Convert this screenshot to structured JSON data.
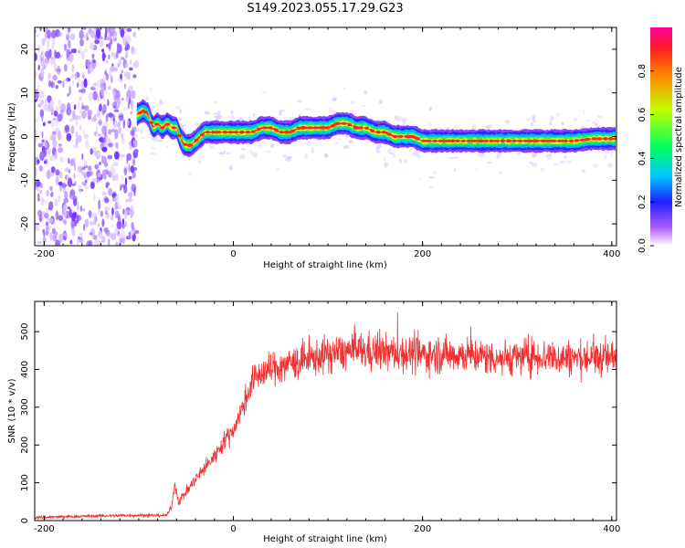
{
  "title": "S149.2023.055.17.29.G23",
  "chart_data": [
    {
      "type": "heatmap",
      "xlabel": "Height of straight line (km)",
      "ylabel": "Frequency (Hz)",
      "xlim": [
        -210,
        405
      ],
      "ylim": [
        -25,
        25
      ],
      "xticks": [
        -200,
        0,
        200,
        400
      ],
      "yticks": [
        -20,
        -10,
        0,
        10,
        20
      ],
      "noise_region_x": [
        -210,
        -102
      ],
      "ridge": {
        "x": [
          -102,
          -95,
          -90,
          -85,
          -80,
          -75,
          -70,
          -65,
          -60,
          -55,
          -50,
          -45,
          -40,
          -35,
          -30,
          -25,
          -20,
          -10,
          0,
          10,
          20,
          30,
          40,
          50,
          60,
          70,
          80,
          90,
          100,
          110,
          120,
          130,
          140,
          150,
          160,
          170,
          180,
          190,
          200,
          220,
          240,
          260,
          280,
          300,
          320,
          340,
          360,
          380,
          405
        ],
        "y": [
          5,
          6,
          5,
          2,
          3,
          2,
          3,
          2,
          2,
          -1,
          -2,
          -2,
          -1,
          0,
          1,
          1,
          1,
          1,
          1,
          1,
          1,
          2,
          2,
          1,
          1,
          2,
          2,
          2,
          2,
          3,
          3,
          2,
          2,
          1,
          1,
          0,
          0,
          0,
          -1,
          -1,
          -1,
          -1,
          -1,
          -1,
          -1,
          -1,
          -1,
          -0.5,
          -0.5
        ]
      },
      "colorbar": {
        "label": "Normalized spectral amplitude",
        "ticks": [
          0.0,
          0.2,
          0.4,
          0.6,
          0.8
        ],
        "range": [
          0,
          1
        ]
      }
    },
    {
      "type": "line",
      "xlabel": "Height of straight line (km)",
      "ylabel": "SNR (10 * v/v)",
      "xlim": [
        -210,
        405
      ],
      "ylim": [
        0,
        580
      ],
      "xticks": [
        -200,
        0,
        200,
        400
      ],
      "yticks": [
        0,
        100,
        200,
        300,
        400,
        500
      ],
      "color": "#f03030",
      "envelope": {
        "x": [
          -210,
          -150,
          -100,
          -70,
          -65,
          -62,
          -58,
          -55,
          -50,
          -40,
          -30,
          -20,
          -10,
          0,
          10,
          20,
          30,
          50,
          70,
          100,
          130,
          160,
          200,
          240,
          280,
          320,
          360,
          405
        ],
        "y": [
          8,
          12,
          14,
          14,
          40,
          100,
          50,
          60,
          75,
          110,
          140,
          170,
          210,
          240,
          300,
          370,
          390,
          410,
          420,
          440,
          450,
          445,
          440,
          440,
          430,
          435,
          430,
          430
        ]
      }
    }
  ]
}
